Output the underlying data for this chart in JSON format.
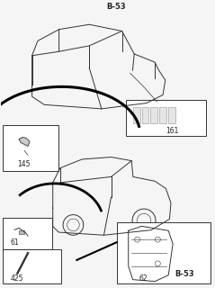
{
  "title": "",
  "background_color": "#f5f5f5",
  "border_color": "#888888",
  "line_color": "#333333",
  "label_color": "#222222",
  "labels": {
    "B53_top": "B-53",
    "B53_bottom": "B-53",
    "n145": "145",
    "n161": "161",
    "n61": "61",
    "n425": "425",
    "n62": "62"
  },
  "font_size": 5.5,
  "fig_width": 2.39,
  "fig_height": 3.2,
  "dpi": 100
}
